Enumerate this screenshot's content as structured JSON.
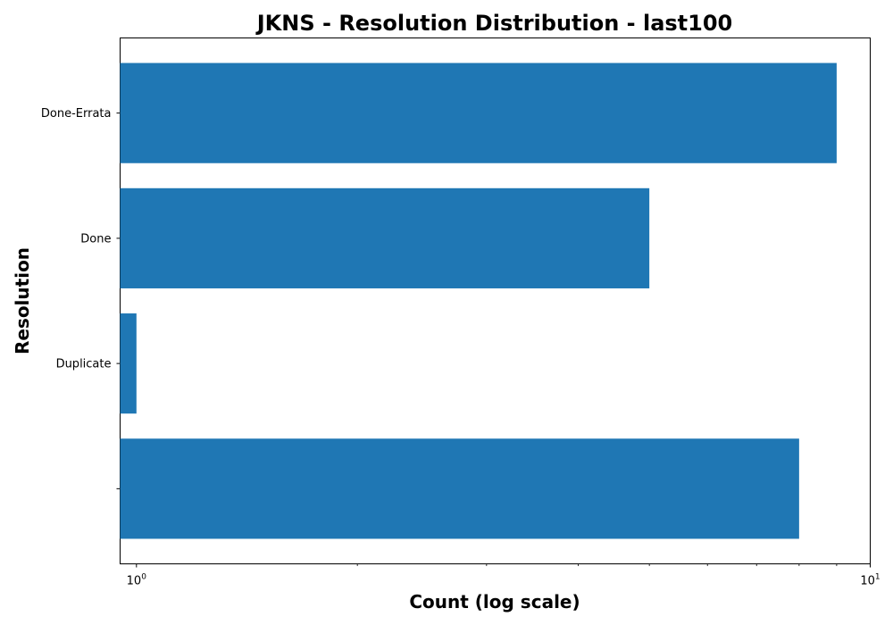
{
  "chart_data": {
    "type": "bar",
    "orientation": "horizontal",
    "title": "JKNS - Resolution Distribution - last100",
    "xlabel": "Count (log scale)",
    "ylabel": "Resolution",
    "x_scale": "log",
    "xlim": [
      0.95,
      10
    ],
    "x_ticks": [
      {
        "value": 1,
        "base": "10",
        "exp": "0"
      },
      {
        "value": 10,
        "base": "10",
        "exp": "1"
      }
    ],
    "categories": [
      "Done-Errata",
      "Done",
      "Duplicate",
      ""
    ],
    "values": [
      9,
      5,
      1,
      8
    ],
    "grid": false,
    "bar_color": "#1f77b4"
  }
}
